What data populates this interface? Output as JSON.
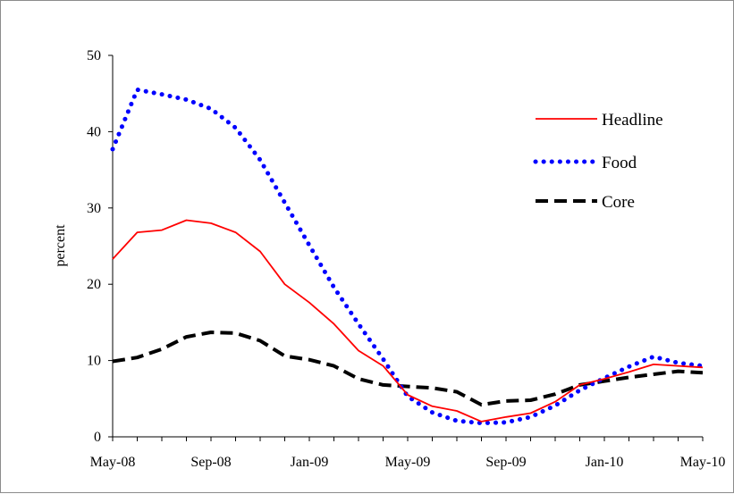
{
  "chart_data": {
    "type": "line",
    "title": "",
    "xlabel": "",
    "ylabel": "percent",
    "ylim": [
      0,
      50
    ],
    "yticks": [
      0,
      10,
      20,
      30,
      40,
      50
    ],
    "x_tick_labels": [
      "May-08",
      "Sep-08",
      "Jan-09",
      "May-09",
      "Sep-09",
      "Jan-10",
      "May-10"
    ],
    "x_tick_indices": [
      0,
      4,
      8,
      12,
      16,
      20,
      24
    ],
    "x": [
      "May-08",
      "Jun-08",
      "Jul-08",
      "Aug-08",
      "Sep-08",
      "Oct-08",
      "Nov-08",
      "Dec-08",
      "Jan-09",
      "Feb-09",
      "Mar-09",
      "Apr-09",
      "May-09",
      "Jun-09",
      "Jul-09",
      "Aug-09",
      "Sep-09",
      "Oct-09",
      "Nov-09",
      "Dec-09",
      "Jan-10",
      "Feb-10",
      "Mar-10",
      "Apr-10",
      "May-10"
    ],
    "grid": false,
    "legend_position": "right",
    "series": [
      {
        "name": "Headline",
        "color": "#ff0000",
        "style": "solid",
        "values": [
          23.3,
          26.8,
          27.1,
          28.4,
          28.0,
          26.8,
          24.3,
          20.0,
          17.6,
          14.8,
          11.3,
          9.3,
          5.5,
          4.0,
          3.4,
          2.0,
          2.6,
          3.1,
          4.6,
          6.8,
          7.6,
          8.5,
          9.5,
          9.3,
          9.1
        ]
      },
      {
        "name": "Food",
        "color": "#0000ff",
        "style": "dotted",
        "values": [
          37.7,
          45.5,
          44.9,
          44.2,
          43.0,
          40.5,
          36.3,
          30.7,
          25.1,
          19.6,
          14.8,
          10.2,
          5.3,
          3.2,
          2.1,
          1.8,
          1.9,
          2.6,
          4.1,
          6.1,
          7.7,
          9.2,
          10.5,
          9.7,
          9.3
        ]
      },
      {
        "name": "Core",
        "color": "#000000",
        "style": "dashed",
        "values": [
          9.9,
          10.4,
          11.5,
          13.1,
          13.7,
          13.6,
          12.6,
          10.6,
          10.1,
          9.3,
          7.6,
          6.8,
          6.6,
          6.4,
          5.9,
          4.2,
          4.7,
          4.8,
          5.6,
          6.8,
          7.3,
          7.8,
          8.2,
          8.6,
          8.4
        ]
      }
    ]
  }
}
